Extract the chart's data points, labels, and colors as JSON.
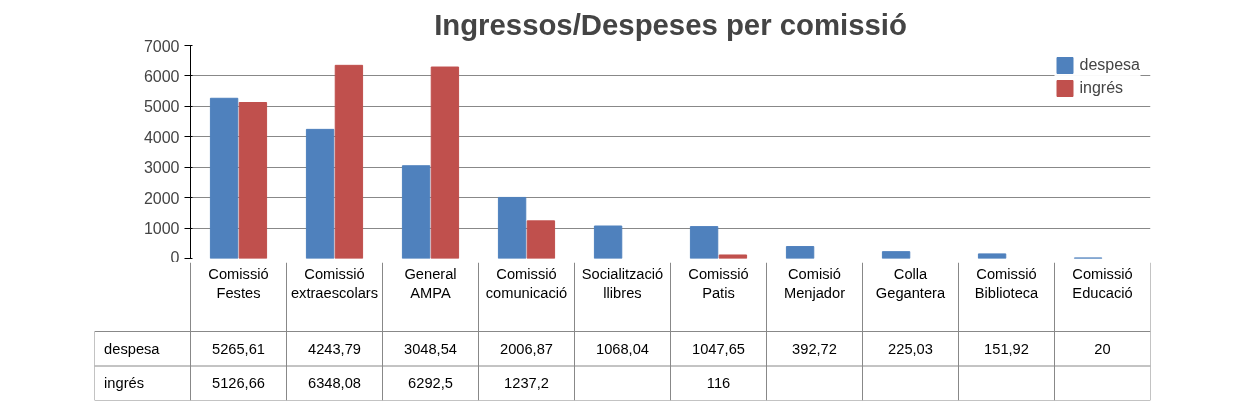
{
  "chart_data": {
    "type": "bar",
    "title": "Ingressos/Despeses per comissió",
    "categories": [
      "Comissió Festes",
      "Comissió extraescolars",
      "General AMPA",
      "Comissió comunicació",
      "Socialització llibres",
      "Comissió Patis",
      "Comisió Menjador",
      "Colla Gegantera",
      "Comissió Biblioteca",
      "Comissió Educació"
    ],
    "series": [
      {
        "name": "despesa",
        "color": "#4f81bd",
        "values": [
          5265.61,
          4243.79,
          3048.54,
          2006.87,
          1068.04,
          1047.65,
          392.72,
          225.03,
          151.92,
          20
        ],
        "value_labels": [
          "5265,61",
          "4243,79",
          "3048,54",
          "2006,87",
          "1068,04",
          "1047,65",
          "392,72",
          "225,03",
          "151,92",
          "20"
        ]
      },
      {
        "name": "ingrés",
        "color": "#c0504d",
        "values": [
          5126.66,
          6348.08,
          6292.5,
          1237.2,
          null,
          116,
          null,
          null,
          null,
          null
        ],
        "value_labels": [
          "5126,66",
          "6348,08",
          "6292,5",
          "1237,2",
          null,
          "116",
          null,
          null,
          null,
          null
        ]
      }
    ],
    "ylim": [
      0,
      7000
    ],
    "yticks": [
      0,
      1000,
      2000,
      3000,
      4000,
      5000,
      6000,
      7000
    ],
    "grid": "y",
    "legend": "top right"
  }
}
